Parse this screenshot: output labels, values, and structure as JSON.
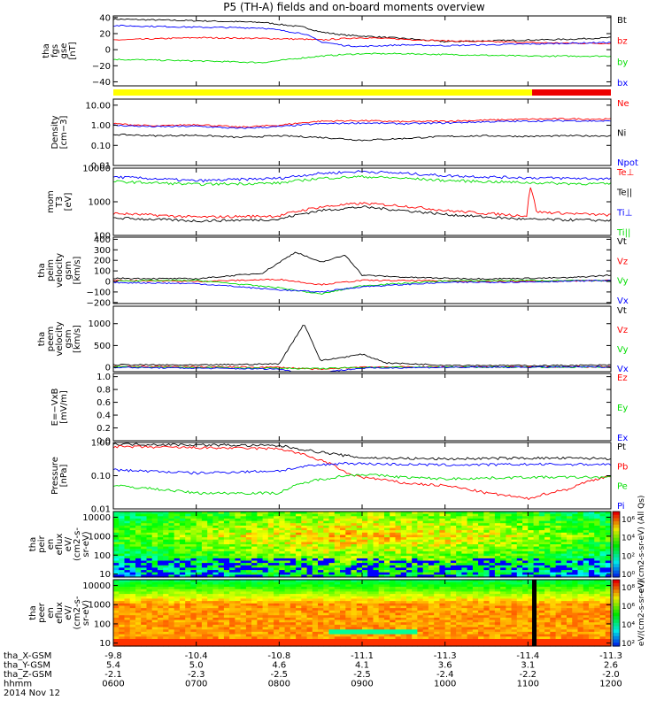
{
  "title": "P5 (TH-A) fields and on-board moments overview",
  "colors": {
    "black": "#000000",
    "red": "#ff0000",
    "green": "#00dd00",
    "blue": "#0000ff",
    "yellow": "#ffff00",
    "bar_red": "#ee0000"
  },
  "time_axis": {
    "ticks": [
      "0600",
      "0700",
      "0800",
      "0900",
      "1000",
      "1100",
      "1200"
    ],
    "rows": [
      {
        "label": "tha_X-GSM",
        "values": [
          "-9.8",
          "-10.4",
          "-10.8",
          "-11.1",
          "-11.3",
          "-11.4",
          "-11.3"
        ]
      },
      {
        "label": "tha_Y-GSM",
        "values": [
          "5.4",
          "5.0",
          "4.6",
          "4.1",
          "3.6",
          "3.1",
          "2.6"
        ]
      },
      {
        "label": "tha_Z-GSM",
        "values": [
          "-2.1",
          "-2.3",
          "-2.5",
          "-2.5",
          "-2.4",
          "-2.2",
          "-2.0"
        ]
      },
      {
        "label": "hhmm",
        "values": [
          "0600",
          "0700",
          "0800",
          "0900",
          "1000",
          "1100",
          "1200"
        ]
      }
    ],
    "date": "2014 Nov 12"
  },
  "chart_data": [
    {
      "type": "line",
      "id": "fgs",
      "ylabel": [
        "tha",
        "fgs",
        "gse",
        "[nT]"
      ],
      "scale": "linear",
      "ylim": [
        -45,
        42
      ],
      "yticks": [
        {
          "v": 40,
          "l": "40"
        },
        {
          "v": 20,
          "l": "20"
        },
        {
          "v": 0,
          "l": "0"
        },
        {
          "v": -20,
          "l": "−20"
        },
        {
          "v": -40,
          "l": "−40"
        }
      ],
      "series": [
        {
          "name": "Bt",
          "color": "#000000",
          "x": [
            6,
            7,
            7.8,
            8.3,
            8.5,
            8.8,
            9,
            9.5,
            10,
            10.5,
            11,
            11.5,
            12
          ],
          "y": [
            38,
            36,
            34,
            28,
            22,
            18,
            17,
            14,
            10,
            11,
            12,
            13,
            15
          ]
        },
        {
          "name": "bz",
          "color": "#ff0000",
          "x": [
            6,
            7,
            7.8,
            8.3,
            8.5,
            8.8,
            9,
            9.5,
            10,
            10.5,
            11,
            11.5,
            12
          ],
          "y": [
            12,
            15,
            14,
            13,
            12,
            14,
            15,
            13,
            11,
            10,
            9,
            8,
            8
          ]
        },
        {
          "name": "by",
          "color": "#00dd00",
          "x": [
            6,
            7,
            7.8,
            8.3,
            8.5,
            8.8,
            9,
            9.5,
            10,
            10.5,
            11,
            11.5,
            12
          ],
          "y": [
            -12,
            -14,
            -16,
            -10,
            -8,
            -6,
            -5,
            -5,
            -6,
            -7,
            -8,
            -8,
            -8
          ]
        },
        {
          "name": "bx",
          "color": "#0000ff",
          "x": [
            6,
            7,
            7.8,
            8.3,
            8.5,
            8.8,
            9,
            9.5,
            10,
            10.5,
            11,
            11.5,
            12
          ],
          "y": [
            30,
            28,
            27,
            20,
            10,
            5,
            4,
            6,
            5,
            6,
            7,
            8,
            9
          ]
        }
      ]
    },
    {
      "type": "line",
      "id": "density",
      "ylabel": [
        "Density",
        "[cm−3]"
      ],
      "scale": "log",
      "ylim": [
        0.01,
        20
      ],
      "yticks": [
        {
          "v": 10,
          "l": "10.00"
        },
        {
          "v": 1,
          "l": "1.00"
        },
        {
          "v": 0.1,
          "l": "0.10"
        },
        {
          "v": 0.01,
          "l": "0.01"
        }
      ],
      "series": [
        {
          "name": "Ne",
          "color": "#ff0000",
          "x": [
            6,
            6.5,
            7,
            7.5,
            8,
            8.5,
            9,
            9.5,
            10,
            10.5,
            11,
            11.5,
            12
          ],
          "y": [
            1.2,
            0.9,
            1.1,
            0.8,
            1.0,
            1.6,
            1.7,
            1.5,
            1.6,
            1.8,
            2.0,
            2.1,
            2.0
          ]
        },
        {
          "name": "Ni",
          "color": "#000000",
          "x": [
            6,
            6.5,
            7,
            7.5,
            8,
            8.5,
            9,
            9.5,
            10,
            10.5,
            11,
            11.5,
            12
          ],
          "y": [
            0.35,
            0.3,
            0.32,
            0.25,
            0.3,
            0.25,
            0.18,
            0.22,
            0.28,
            0.3,
            0.28,
            0.3,
            0.3
          ]
        },
        {
          "name": "Npot",
          "color": "#0000ff",
          "x": [
            6,
            6.5,
            7,
            7.5,
            8,
            8.5,
            9,
            9.5,
            10,
            10.5,
            11,
            11.5,
            12
          ],
          "y": [
            1.0,
            0.85,
            0.9,
            0.7,
            0.85,
            1.2,
            1.3,
            1.2,
            1.3,
            1.5,
            1.6,
            1.7,
            1.6
          ]
        }
      ]
    },
    {
      "type": "line",
      "id": "temp",
      "ylabel": [
        "mom",
        "T3",
        "[eV]"
      ],
      "scale": "log",
      "ylim": [
        100,
        10000
      ],
      "yticks": [
        {
          "v": 10000,
          "l": "10000"
        },
        {
          "v": 1000,
          "l": "1000"
        },
        {
          "v": 100,
          "l": "100"
        }
      ],
      "series": [
        {
          "name": "Te⊥",
          "color": "#ff0000",
          "x": [
            6,
            7,
            8,
            8.5,
            9,
            9.5,
            10,
            10.5,
            11,
            11.02,
            11.1,
            11.5,
            12
          ],
          "y": [
            450,
            350,
            380,
            700,
            900,
            750,
            550,
            450,
            380,
            2800,
            500,
            450,
            400
          ]
        },
        {
          "name": "Te||",
          "color": "#000000",
          "x": [
            6,
            7,
            8,
            8.5,
            9,
            9.5,
            10,
            10.5,
            11,
            11.5,
            12
          ],
          "y": [
            330,
            270,
            300,
            550,
            700,
            550,
            420,
            350,
            300,
            290,
            280
          ]
        },
        {
          "name": "Ti⊥",
          "color": "#0000ff",
          "x": [
            6,
            7,
            8,
            8.5,
            9,
            9.5,
            10,
            10.5,
            11,
            11.5,
            12
          ],
          "y": [
            5500,
            4200,
            5000,
            7000,
            8000,
            7000,
            6000,
            5500,
            5200,
            5000,
            4800
          ]
        },
        {
          "name": "Ti||",
          "color": "#00dd00",
          "x": [
            6,
            7,
            8,
            8.5,
            9,
            9.5,
            10,
            10.5,
            11,
            11.5,
            12
          ],
          "y": [
            4000,
            3300,
            3600,
            5000,
            5600,
            5000,
            4300,
            4000,
            3700,
            3500,
            3400
          ]
        }
      ]
    },
    {
      "type": "line",
      "id": "peim",
      "ylabel": [
        "tha",
        "peim",
        "velocity",
        "gsm",
        "[km/s]"
      ],
      "scale": "linear",
      "ylim": [
        -210,
        420
      ],
      "yticks": [
        {
          "v": 400,
          "l": "400"
        },
        {
          "v": 300,
          "l": "300"
        },
        {
          "v": 200,
          "l": "200"
        },
        {
          "v": 100,
          "l": "100"
        },
        {
          "v": 0,
          "l": "0"
        },
        {
          "v": -100,
          "l": "−100"
        },
        {
          "v": -200,
          "l": "−200"
        }
      ],
      "series": [
        {
          "name": "Vt",
          "color": "#000000",
          "x": [
            6,
            7,
            7.8,
            8.2,
            8.5,
            8.8,
            9,
            9.5,
            10,
            10.5,
            11,
            11.5,
            12
          ],
          "y": [
            30,
            25,
            80,
            280,
            180,
            250,
            60,
            40,
            30,
            25,
            30,
            35,
            60
          ]
        },
        {
          "name": "Vz",
          "color": "#ff0000",
          "x": [
            6,
            7,
            8,
            8.5,
            9,
            10,
            11,
            12
          ],
          "y": [
            10,
            0,
            20,
            -30,
            10,
            5,
            0,
            10
          ]
        },
        {
          "name": "Vy",
          "color": "#00dd00",
          "x": [
            6,
            7,
            8,
            8.5,
            9,
            10,
            11,
            12
          ],
          "y": [
            5,
            10,
            -60,
            -120,
            -40,
            5,
            10,
            5
          ]
        },
        {
          "name": "Vx",
          "color": "#0000ff",
          "x": [
            6,
            7,
            8,
            8.5,
            9,
            10,
            11,
            12
          ],
          "y": [
            -10,
            -20,
            -80,
            -100,
            -50,
            -10,
            -5,
            10
          ]
        }
      ]
    },
    {
      "type": "line",
      "id": "peem",
      "ylabel": [
        "tha",
        "peem",
        "velocity",
        "gsm",
        "[km/s]"
      ],
      "scale": "linear",
      "ylim": [
        -100,
        1400
      ],
      "yticks": [
        {
          "v": 1000,
          "l": "1000"
        },
        {
          "v": 500,
          "l": "500"
        },
        {
          "v": 0,
          "l": "0"
        }
      ],
      "series": [
        {
          "name": "Vt",
          "color": "#000000",
          "x": [
            6,
            7,
            8,
            8.3,
            8.5,
            9,
            9.3,
            10,
            11,
            12
          ],
          "y": [
            60,
            50,
            80,
            1000,
            150,
            300,
            100,
            50,
            40,
            50
          ]
        },
        {
          "name": "Vz",
          "color": "#ff0000",
          "x": [
            6,
            8,
            8.5,
            9,
            10,
            12
          ],
          "y": [
            20,
            0,
            -50,
            10,
            10,
            10
          ]
        },
        {
          "name": "Vy",
          "color": "#00dd00",
          "x": [
            6,
            8,
            8.5,
            9,
            10,
            12
          ],
          "y": [
            10,
            -20,
            -30,
            0,
            5,
            5
          ]
        },
        {
          "name": "Vx",
          "color": "#0000ff",
          "x": [
            6,
            8,
            8.3,
            9,
            10,
            12
          ],
          "y": [
            0,
            -40,
            -150,
            -20,
            0,
            10
          ]
        }
      ]
    },
    {
      "type": "line",
      "id": "efield",
      "ylabel": [
        "E=−VxB",
        "[mV/m]"
      ],
      "scale": "linear",
      "ylim": [
        0,
        1.05
      ],
      "yticks": [
        {
          "v": 1.0,
          "l": "1.0"
        },
        {
          "v": 0.8,
          "l": "0.8"
        },
        {
          "v": 0.6,
          "l": "0.6"
        },
        {
          "v": 0.4,
          "l": "0.4"
        },
        {
          "v": 0.2,
          "l": "0.2"
        },
        {
          "v": 0,
          "l": "0.0"
        }
      ],
      "series": [
        {
          "name": "Ez",
          "color": "#ff0000",
          "x": [],
          "y": []
        },
        {
          "name": "Ey",
          "color": "#00dd00",
          "x": [],
          "y": []
        },
        {
          "name": "Ex",
          "color": "#0000ff",
          "x": [],
          "y": []
        }
      ]
    },
    {
      "type": "line",
      "id": "pressure",
      "ylabel": [
        "Pressure",
        "[nPa]"
      ],
      "scale": "log",
      "ylim": [
        0.01,
        1.0
      ],
      "yticks": [
        {
          "v": 1,
          "l": "1.00"
        },
        {
          "v": 0.1,
          "l": "0.10"
        },
        {
          "v": 0.01,
          "l": "0.01"
        }
      ],
      "series": [
        {
          "name": "Pt",
          "color": "#000000",
          "x": [
            6,
            7,
            8,
            8.4,
            8.8,
            9,
            9.5,
            10,
            11,
            12
          ],
          "y": [
            0.9,
            0.85,
            0.8,
            0.55,
            0.4,
            0.35,
            0.33,
            0.32,
            0.34,
            0.33
          ]
        },
        {
          "name": "Pb",
          "color": "#ff0000",
          "x": [
            6,
            7,
            8,
            8.4,
            8.8,
            9,
            9.5,
            10,
            10.5,
            11,
            11.5,
            12
          ],
          "y": [
            0.75,
            0.7,
            0.65,
            0.35,
            0.12,
            0.09,
            0.06,
            0.05,
            0.03,
            0.02,
            0.04,
            0.1
          ]
        },
        {
          "name": "Pe",
          "color": "#00dd00",
          "x": [
            6,
            7,
            8,
            8.4,
            8.8,
            9,
            9.5,
            10,
            11,
            12
          ],
          "y": [
            0.05,
            0.03,
            0.03,
            0.07,
            0.1,
            0.11,
            0.09,
            0.08,
            0.09,
            0.09
          ]
        },
        {
          "name": "Pi",
          "color": "#0000ff",
          "x": [
            6,
            7,
            8,
            8.4,
            8.8,
            9,
            9.5,
            10,
            11,
            12
          ],
          "y": [
            0.15,
            0.12,
            0.14,
            0.2,
            0.24,
            0.23,
            0.22,
            0.21,
            0.22,
            0.22
          ]
        }
      ]
    },
    {
      "type": "heatmap",
      "id": "peir",
      "ylabel": [
        "tha",
        "peir",
        "en",
        "eflux",
        "eV/",
        "(cm2-s-",
        "sr-eV)"
      ],
      "scale": "log",
      "ylim": [
        7,
        20000
      ],
      "yticks": [
        {
          "v": 10000,
          "l": "10000"
        },
        {
          "v": 1000,
          "l": "1000"
        },
        {
          "v": 100,
          "l": "100"
        },
        {
          "v": 10,
          "l": "10"
        }
      ],
      "colorbar": {
        "label": "eV/(cm2-s-sr-eV) (All Qs)",
        "ticks": [
          "10⁶",
          "10⁴",
          "10²",
          "10⁰"
        ]
      }
    },
    {
      "type": "heatmap",
      "id": "peer",
      "ylabel": [
        "tha",
        "peer",
        "en",
        "eflux",
        "eV/",
        "(cm2-s-",
        "sr-eV)"
      ],
      "scale": "log",
      "ylim": [
        7,
        20000
      ],
      "yticks": [
        {
          "v": 10000,
          "l": "10000"
        },
        {
          "v": 1000,
          "l": "1000"
        },
        {
          "v": 100,
          "l": "100"
        },
        {
          "v": 10,
          "l": "10"
        }
      ],
      "colorbar": {
        "label": "eV/(cm2-s-sr-eV)",
        "ticks": [
          "10⁸",
          "10⁶",
          "10⁴",
          "10²"
        ]
      }
    }
  ]
}
